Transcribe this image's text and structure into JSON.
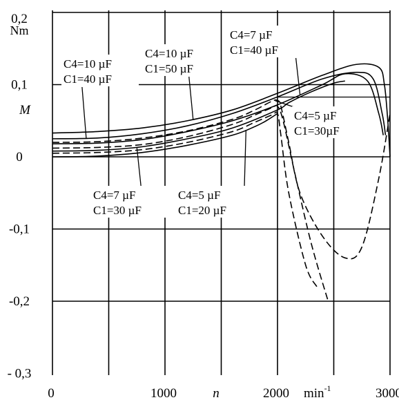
{
  "chart_data": {
    "type": "line",
    "title": "",
    "xlabel": "n",
    "x_unit": "min",
    "x_unit_exponent": "-1",
    "ylabel": "M",
    "y_unit": "Nm",
    "xlim": [
      0,
      3000
    ],
    "ylim": [
      -0.3,
      0.2
    ],
    "x_ticks": [
      0,
      1000,
      2000,
      3000
    ],
    "x_tick_labels": [
      "0",
      "1000",
      "2000",
      "3000"
    ],
    "y_ticks": [
      0.2,
      0.1,
      0,
      -0.1,
      -0.2,
      -0.3
    ],
    "y_tick_labels": [
      "0,2",
      "0,1",
      "0",
      "-0,1",
      "-0,2",
      "- 0,3"
    ],
    "grid": true,
    "legend": "none",
    "series": [
      {
        "label": "C4=10 µF C1=50 µF",
        "style": "solid",
        "x": [
          0,
          400,
          800,
          1200,
          1600,
          2000,
          2400,
          2700,
          2900,
          2950,
          2980,
          3000
        ],
        "y": [
          0.033,
          0.035,
          0.04,
          0.05,
          0.065,
          0.088,
          0.113,
          0.128,
          0.124,
          0.1,
          0.05,
          0.0
        ]
      },
      {
        "label": "C4=10 µF C1=40 µF",
        "style": "solid",
        "x": [
          0,
          400,
          800,
          1200,
          1600,
          2000,
          2400,
          2700,
          2850,
          2930,
          2960
        ],
        "y": [
          0.025,
          0.026,
          0.032,
          0.043,
          0.06,
          0.083,
          0.108,
          0.117,
          0.108,
          0.06,
          0.03
        ]
      },
      {
        "label": "C4=7 µF C1=40 µF",
        "style": "solid",
        "x": [
          0,
          400,
          800,
          1200,
          1600,
          2000,
          2400,
          2600,
          2800,
          2900,
          2940
        ],
        "y": [
          0.018,
          0.019,
          0.024,
          0.035,
          0.05,
          0.072,
          0.1,
          0.115,
          0.105,
          0.06,
          0.03
        ]
      },
      {
        "label": "C4=7 µF C1=30 µF",
        "style": "solid",
        "x": [
          0,
          400,
          800,
          1200,
          1600,
          2000,
          2100,
          2300,
          2500,
          2600
        ],
        "y": [
          0.008,
          0.009,
          0.014,
          0.025,
          0.04,
          0.065,
          0.075,
          0.09,
          0.102,
          0.105
        ]
      },
      {
        "label": "C4=5 µF C1=20 µF",
        "style": "solid",
        "x": [
          0,
          400,
          800,
          1200,
          1600,
          1800,
          1900,
          2000
        ],
        "y": [
          0.0,
          0.001,
          0.006,
          0.016,
          0.03,
          0.042,
          0.05,
          0.06
        ]
      },
      {
        "label": "C4=5 µF C1=30µF",
        "style": "dashed",
        "x": [
          0,
          400,
          800,
          1200,
          1600,
          1800,
          1950,
          2000,
          2030,
          2100,
          2200,
          2400,
          2600,
          2750,
          2900,
          3000
        ],
        "y": [
          0.02,
          0.021,
          0.026,
          0.036,
          0.052,
          0.065,
          0.077,
          0.078,
          0.07,
          0.02,
          -0.05,
          -0.11,
          -0.14,
          -0.125,
          -0.03,
          0.06
        ]
      },
      {
        "label": "",
        "style": "dashed",
        "x": [
          0,
          400,
          800,
          1200,
          1600,
          1800,
          1950,
          2000,
          2050,
          2150,
          2300,
          2450
        ],
        "y": [
          0.012,
          0.013,
          0.017,
          0.028,
          0.045,
          0.058,
          0.068,
          0.07,
          0.05,
          -0.02,
          -0.12,
          -0.2
        ]
      },
      {
        "label": "",
        "style": "dashed",
        "x": [
          0,
          400,
          800,
          1200,
          1600,
          1800,
          1950,
          2000,
          2030,
          2100,
          2250,
          2350
        ],
        "y": [
          0.005,
          0.006,
          0.01,
          0.02,
          0.035,
          0.048,
          0.058,
          0.06,
          0.03,
          -0.05,
          -0.15,
          -0.18
        ]
      }
    ],
    "annotations": [
      {
        "line1": "C4=10 µF",
        "line2": "C1=40 µF",
        "points_to_series": 1,
        "at_x": 300
      },
      {
        "line1": "C4=10 µF",
        "line2": "C1=50 µF",
        "points_to_series": 0,
        "at_x": 1250
      },
      {
        "line1": "C4=7 µF",
        "line2": "C1=40 µF",
        "points_to_series": 2,
        "at_x": 2200
      },
      {
        "line1": "C4=5 µF",
        "line2": "C1=30µF",
        "points_to_series": 5,
        "at_x": 1980
      },
      {
        "line1": "C4=7 µF",
        "line2": "C1=30 µF",
        "points_to_series": 3,
        "at_x": 750
      },
      {
        "line1": "C4=5 µF",
        "line2": "C1=20 µF",
        "points_to_series": 4,
        "at_x": 1720
      }
    ]
  }
}
